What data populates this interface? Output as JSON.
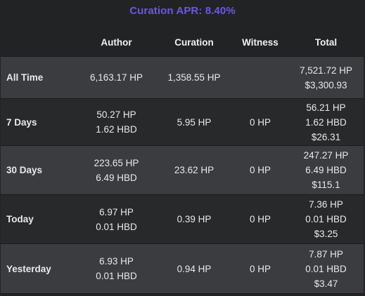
{
  "header": {
    "apr_text": "Curation APR: 8.40%"
  },
  "columns": [
    "Author",
    "Curation",
    "Witness",
    "Total"
  ],
  "rows": [
    {
      "label": "All Time",
      "author": [
        "6,163.17 HP"
      ],
      "curation": "1,358.55 HP",
      "witness": "",
      "total": [
        "7,521.72 HP",
        "$3,300.93"
      ]
    },
    {
      "label": "7 Days",
      "author": [
        "50.27 HP",
        "1.62 HBD"
      ],
      "curation": "5.95 HP",
      "witness": "0 HP",
      "total": [
        "56.21 HP",
        "1.62 HBD",
        "$26.31"
      ]
    },
    {
      "label": "30 Days",
      "author": [
        "223.65 HP",
        "6.49 HBD"
      ],
      "curation": "23.62 HP",
      "witness": "0 HP",
      "total": [
        "247.27 HP",
        "6.49 HBD",
        "$115.1"
      ]
    },
    {
      "label": "Today",
      "author": [
        "6.97 HP",
        "0.01 HBD"
      ],
      "curation": "0.39 HP",
      "witness": "0 HP",
      "total": [
        "7.36 HP",
        "0.01 HBD",
        "$3.25"
      ]
    },
    {
      "label": "Yesterday",
      "author": [
        "6.93 HP",
        "0.01 HBD"
      ],
      "curation": "0.94 HP",
      "witness": "0 HP",
      "total": [
        "7.87 HP",
        "0.01 HBD",
        "$3.47"
      ]
    }
  ],
  "colors": {
    "apr_text": "#6b57e8",
    "background": "#222324",
    "row_alt": "#3b3c40",
    "row_base": "#28292b",
    "text": "#e9e9e9"
  }
}
